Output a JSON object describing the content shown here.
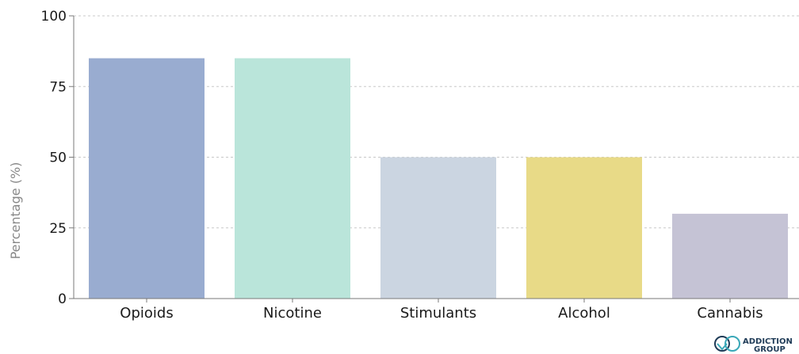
{
  "chart_data": {
    "type": "bar",
    "categories": [
      "Opioids",
      "Nicotine",
      "Stimulants",
      "Alcohol",
      "Cannabis"
    ],
    "values": [
      85,
      85,
      50,
      50,
      30
    ],
    "colors": [
      "#99acd0",
      "#bae5da",
      "#cbd5e1",
      "#e8da87",
      "#c5c3d5"
    ],
    "ylabel": "Percentage (%)",
    "ylim": [
      0,
      100
    ],
    "yticks": [
      0,
      25,
      50,
      75,
      100
    ],
    "grid": true,
    "grid_style": "dotted",
    "gridline_color": "#c8c8c8"
  },
  "logo": {
    "name": "addiction-group-logo",
    "text_line1": "ADDICTION",
    "text_line2": "GROUP",
    "color": "#1f3b57",
    "accent_color": "#3aa8b8"
  }
}
